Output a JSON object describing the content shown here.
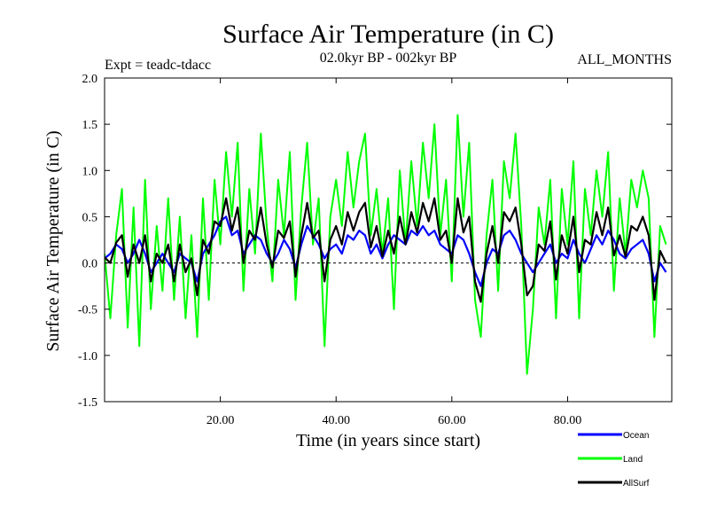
{
  "chart_data": {
    "type": "line",
    "title": "Surface Air Temperature (in C)",
    "subtitle_left": "Expt = teadc-tdacc",
    "subtitle_center": "02.0kyr BP - 002kyr BP",
    "subtitle_right": "ALL_MONTHS",
    "xlabel": "Time (in years since start)",
    "ylabel": "Surface Air Temperature (in C)",
    "xlim": [
      0.0,
      98.0
    ],
    "ylim": [
      -1.5,
      2.0
    ],
    "x_ticks": [
      20,
      40,
      60,
      80
    ],
    "x_tick_labels": [
      "20.00",
      "40.00",
      "60.00",
      "80.00"
    ],
    "y_ticks": [
      -1.5,
      -1.0,
      -0.5,
      0.0,
      0.5,
      1.0,
      1.5,
      2.0
    ],
    "y_tick_labels": [
      "-1.5",
      "-1.0",
      "-0.5",
      "0.0",
      "0.5",
      "1.0",
      "1.5",
      "2.0"
    ],
    "zero_line": true,
    "legend_position": "bottom-right",
    "series": [
      {
        "name": "Land",
        "color": "#00ff00",
        "x": [
          0,
          1,
          2,
          3,
          4,
          5,
          6,
          7,
          8,
          9,
          10,
          11,
          12,
          13,
          14,
          15,
          16,
          17,
          18,
          19,
          20,
          21,
          22,
          23,
          24,
          25,
          26,
          27,
          28,
          29,
          30,
          31,
          32,
          33,
          34,
          35,
          36,
          37,
          38,
          39,
          40,
          41,
          42,
          43,
          44,
          45,
          46,
          47,
          48,
          49,
          50,
          51,
          52,
          53,
          54,
          55,
          56,
          57,
          58,
          59,
          60,
          61,
          62,
          63,
          64,
          65,
          66,
          67,
          68,
          69,
          70,
          71,
          72,
          73,
          74,
          75,
          76,
          77,
          78,
          79,
          80,
          81,
          82,
          83,
          84,
          85,
          86,
          87,
          88,
          89,
          90,
          91,
          92,
          93,
          94,
          95,
          96,
          97
        ],
        "values": [
          0.1,
          -0.6,
          0.3,
          0.8,
          -0.7,
          0.6,
          -0.9,
          0.9,
          -0.5,
          0.4,
          -0.3,
          0.7,
          -0.4,
          0.5,
          -0.6,
          0.3,
          -0.8,
          0.7,
          -0.4,
          0.9,
          0.2,
          1.2,
          0.5,
          1.3,
          -0.3,
          0.8,
          0.1,
          1.4,
          0.4,
          -0.2,
          0.9,
          0.3,
          1.2,
          -0.4,
          0.6,
          1.3,
          0.2,
          0.7,
          -0.9,
          0.5,
          0.9,
          0.4,
          1.2,
          0.6,
          1.1,
          1.4,
          0.3,
          0.8,
          0.1,
          0.7,
          -0.5,
          1.0,
          0.2,
          1.1,
          0.4,
          1.3,
          0.7,
          1.5,
          0.3,
          0.9,
          -0.2,
          1.6,
          0.5,
          1.3,
          -0.4,
          -0.8,
          0.3,
          0.9,
          -0.3,
          1.1,
          0.7,
          1.4,
          0.4,
          -1.2,
          -0.5,
          0.6,
          0.2,
          0.9,
          -0.6,
          0.8,
          0.2,
          1.1,
          -0.6,
          0.8,
          0.3,
          1.0,
          0.5,
          1.2,
          -0.3,
          0.7,
          0.1,
          0.9,
          0.6,
          1.0,
          0.7,
          -0.8,
          0.4,
          0.2
        ]
      },
      {
        "name": "Ocean",
        "color": "#0000ff",
        "x": [
          0,
          1,
          2,
          3,
          4,
          5,
          6,
          7,
          8,
          9,
          10,
          11,
          12,
          13,
          14,
          15,
          16,
          17,
          18,
          19,
          20,
          21,
          22,
          23,
          24,
          25,
          26,
          27,
          28,
          29,
          30,
          31,
          32,
          33,
          34,
          35,
          36,
          37,
          38,
          39,
          40,
          41,
          42,
          43,
          44,
          45,
          46,
          47,
          48,
          49,
          50,
          51,
          52,
          53,
          54,
          55,
          56,
          57,
          58,
          59,
          60,
          61,
          62,
          63,
          64,
          65,
          66,
          67,
          68,
          69,
          70,
          71,
          72,
          73,
          74,
          75,
          76,
          77,
          78,
          79,
          80,
          81,
          82,
          83,
          84,
          85,
          86,
          87,
          88,
          89,
          90,
          91,
          92,
          93,
          94,
          95,
          96,
          97
        ],
        "values": [
          0.05,
          0.1,
          0.2,
          0.15,
          0.0,
          0.1,
          0.25,
          0.1,
          -0.1,
          0.0,
          0.1,
          0.0,
          -0.1,
          0.1,
          0.05,
          0.0,
          -0.2,
          0.1,
          0.2,
          0.3,
          0.45,
          0.5,
          0.3,
          0.35,
          0.1,
          0.2,
          0.3,
          0.25,
          0.1,
          0.0,
          0.1,
          0.25,
          0.15,
          -0.05,
          0.2,
          0.4,
          0.3,
          0.2,
          0.05,
          0.15,
          0.2,
          0.1,
          0.3,
          0.25,
          0.35,
          0.3,
          0.1,
          0.2,
          0.05,
          0.2,
          0.3,
          0.25,
          0.2,
          0.35,
          0.3,
          0.4,
          0.3,
          0.35,
          0.2,
          0.15,
          0.1,
          0.3,
          0.25,
          0.1,
          -0.1,
          -0.25,
          0.0,
          0.15,
          0.1,
          0.3,
          0.35,
          0.25,
          0.1,
          0.0,
          -0.1,
          0.0,
          0.1,
          0.2,
          0.0,
          0.1,
          0.05,
          0.25,
          0.1,
          0.0,
          0.15,
          0.3,
          0.2,
          0.35,
          0.25,
          0.1,
          0.05,
          0.15,
          0.2,
          0.25,
          0.1,
          -0.2,
          0.0,
          -0.1
        ]
      },
      {
        "name": "AllSurf",
        "color": "#000000",
        "x": [
          0,
          1,
          2,
          3,
          4,
          5,
          6,
          7,
          8,
          9,
          10,
          11,
          12,
          13,
          14,
          15,
          16,
          17,
          18,
          19,
          20,
          21,
          22,
          23,
          24,
          25,
          26,
          27,
          28,
          29,
          30,
          31,
          32,
          33,
          34,
          35,
          36,
          37,
          38,
          39,
          40,
          41,
          42,
          43,
          44,
          45,
          46,
          47,
          48,
          49,
          50,
          51,
          52,
          53,
          54,
          55,
          56,
          57,
          58,
          59,
          60,
          61,
          62,
          63,
          64,
          65,
          66,
          67,
          68,
          69,
          70,
          71,
          72,
          73,
          74,
          75,
          76,
          77,
          78,
          79,
          80,
          81,
          82,
          83,
          84,
          85,
          86,
          87,
          88,
          89,
          90,
          91,
          92,
          93,
          94,
          95,
          96,
          97
        ],
        "values": [
          0.06,
          0.0,
          0.22,
          0.3,
          -0.15,
          0.2,
          0.0,
          0.3,
          -0.2,
          0.1,
          0.0,
          0.2,
          -0.2,
          0.2,
          -0.1,
          0.05,
          -0.35,
          0.25,
          0.1,
          0.45,
          0.4,
          0.7,
          0.35,
          0.6,
          0.0,
          0.35,
          0.25,
          0.6,
          0.2,
          -0.05,
          0.35,
          0.27,
          0.45,
          -0.15,
          0.3,
          0.65,
          0.27,
          0.35,
          -0.2,
          0.25,
          0.4,
          0.2,
          0.55,
          0.35,
          0.55,
          0.65,
          0.17,
          0.4,
          0.07,
          0.35,
          0.1,
          0.5,
          0.2,
          0.55,
          0.33,
          0.65,
          0.45,
          0.7,
          0.25,
          0.35,
          0.0,
          0.7,
          0.33,
          0.5,
          -0.2,
          -0.42,
          0.1,
          0.4,
          0.0,
          0.55,
          0.45,
          0.6,
          0.2,
          -0.35,
          -0.25,
          0.2,
          0.13,
          0.45,
          -0.18,
          0.3,
          0.1,
          0.5,
          -0.1,
          0.25,
          0.2,
          0.55,
          0.3,
          0.6,
          0.08,
          0.3,
          0.07,
          0.4,
          0.35,
          0.5,
          0.3,
          -0.4,
          0.13,
          0.0
        ]
      }
    ]
  }
}
